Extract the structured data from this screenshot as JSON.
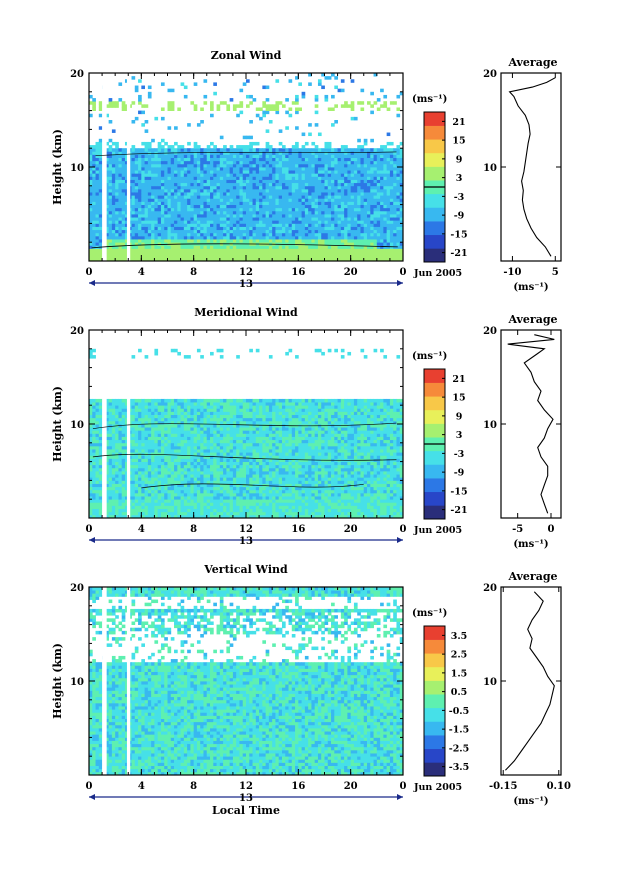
{
  "chart_data": [
    {
      "type": "heatmap",
      "title": "Zonal Wind",
      "ylabel": "Height (km)",
      "ylim": [
        0,
        20
      ],
      "yticks": [
        10,
        20
      ],
      "xlim": [
        0,
        24
      ],
      "xticks": [
        "0",
        "4",
        "8",
        "12",
        "16",
        "20",
        "0"
      ],
      "date_day": "13",
      "date_label": "Jun 2005",
      "colorbar": {
        "unit_label": "(ms⁻¹)",
        "ticks": [
          "21",
          "15",
          "9",
          "3",
          "-3",
          "-9",
          "-15",
          "-21"
        ],
        "range": [
          -24,
          24
        ]
      },
      "profile": {
        "title": "Average",
        "xticks": [
          "-10",
          "5"
        ],
        "xlim": [
          -14,
          7
        ],
        "xlabel": "(ms⁻¹)",
        "series": [
          {
            "height": 0.5,
            "value": 3.5
          },
          {
            "height": 1.5,
            "value": 1.5
          },
          {
            "height": 2.5,
            "value": -1.5
          },
          {
            "height": 3.5,
            "value": -3.5
          },
          {
            "height": 4.5,
            "value": -5.0
          },
          {
            "height": 5.5,
            "value": -6.0
          },
          {
            "height": 6.5,
            "value": -6.5
          },
          {
            "height": 7.5,
            "value": -6.2
          },
          {
            "height": 8.5,
            "value": -6.8
          },
          {
            "height": 9.5,
            "value": -6.0
          },
          {
            "height": 10.5,
            "value": -5.5
          },
          {
            "height": 11.5,
            "value": -5.0
          },
          {
            "height": 12.5,
            "value": -4.5
          },
          {
            "height": 13.5,
            "value": -3.8
          },
          {
            "height": 14.5,
            "value": -4.2
          },
          {
            "height": 15.5,
            "value": -5.5
          },
          {
            "height": 16.5,
            "value": -8.0
          },
          {
            "height": 17.5,
            "value": -9.5
          },
          {
            "height": 18.0,
            "value": -11.0
          },
          {
            "height": 18.5,
            "value": -3.0
          },
          {
            "height": 19.0,
            "value": 2.0
          },
          {
            "height": 19.5,
            "value": 5.0
          }
        ]
      }
    },
    {
      "type": "heatmap",
      "title": "Meridional Wind",
      "ylabel": "Height (km)",
      "ylim": [
        0,
        20
      ],
      "yticks": [
        10,
        20
      ],
      "xlim": [
        0,
        24
      ],
      "xticks": [
        "0",
        "4",
        "8",
        "12",
        "16",
        "20",
        "0"
      ],
      "date_day": "13",
      "date_label": "Jun 2005",
      "colorbar": {
        "unit_label": "(ms⁻¹)",
        "ticks": [
          "21",
          "15",
          "9",
          "3",
          "-3",
          "-9",
          "-15",
          "-21"
        ],
        "range": [
          -24,
          24
        ]
      },
      "profile": {
        "title": "Average",
        "xticks": [
          "-5",
          "0"
        ],
        "xlim": [
          -7.5,
          1.5
        ],
        "xlabel": "(ms⁻¹)",
        "series": [
          {
            "height": 0.5,
            "value": -0.5
          },
          {
            "height": 1.5,
            "value": -1.0
          },
          {
            "height": 2.5,
            "value": -1.5
          },
          {
            "height": 3.5,
            "value": -1.0
          },
          {
            "height": 4.5,
            "value": -0.5
          },
          {
            "height": 5.5,
            "value": -0.5
          },
          {
            "height": 6.5,
            "value": -1.5
          },
          {
            "height": 7.5,
            "value": -2.0
          },
          {
            "height": 8.5,
            "value": -1.0
          },
          {
            "height": 9.5,
            "value": -0.5
          },
          {
            "height": 10.5,
            "value": 0.3
          },
          {
            "height": 11.5,
            "value": -1.0
          },
          {
            "height": 12.5,
            "value": -2.0
          },
          {
            "height": 13.5,
            "value": -1.5
          },
          {
            "height": 14.5,
            "value": -2.5
          },
          {
            "height": 15.5,
            "value": -3.0
          },
          {
            "height": 16.5,
            "value": -4.0
          },
          {
            "height": 17.5,
            "value": -2.0
          },
          {
            "height": 18.0,
            "value": -1.0
          },
          {
            "height": 18.5,
            "value": -6.5
          },
          {
            "height": 19.0,
            "value": 0.5
          },
          {
            "height": 19.5,
            "value": -2.5
          }
        ]
      }
    },
    {
      "type": "heatmap",
      "title": "Vertical Wind",
      "ylabel": "Height (km)",
      "xlabel": "Local Time",
      "ylim": [
        0,
        20
      ],
      "yticks": [
        10,
        20
      ],
      "xlim": [
        0,
        24
      ],
      "xticks": [
        "0",
        "4",
        "8",
        "12",
        "16",
        "20",
        "0"
      ],
      "date_day": "13",
      "date_label": "Jun 2005",
      "colorbar": {
        "unit_label": "(ms⁻¹)",
        "ticks": [
          "3.5",
          "2.5",
          "1.5",
          "0.5",
          "-0.5",
          "-1.5",
          "-2.5",
          "-3.5"
        ],
        "range": [
          -4,
          4
        ]
      },
      "profile": {
        "title": "Average",
        "xticks": [
          "-0.15",
          "0.10"
        ],
        "xlim": [
          -0.16,
          0.11
        ],
        "xlabel": "(ms⁻¹)",
        "series": [
          {
            "height": 0.5,
            "value": -0.14
          },
          {
            "height": 1.5,
            "value": -0.1
          },
          {
            "height": 2.5,
            "value": -0.07
          },
          {
            "height": 3.5,
            "value": -0.04
          },
          {
            "height": 4.5,
            "value": -0.01
          },
          {
            "height": 5.5,
            "value": 0.02
          },
          {
            "height": 6.5,
            "value": 0.04
          },
          {
            "height": 7.5,
            "value": 0.06
          },
          {
            "height": 8.5,
            "value": 0.07
          },
          {
            "height": 9.5,
            "value": 0.08
          },
          {
            "height": 10.5,
            "value": 0.05
          },
          {
            "height": 11.5,
            "value": 0.03
          },
          {
            "height": 12.5,
            "value": 0.0
          },
          {
            "height": 13.5,
            "value": -0.03
          },
          {
            "height": 14.5,
            "value": -0.02
          },
          {
            "height": 15.5,
            "value": -0.04
          },
          {
            "height": 16.5,
            "value": -0.02
          },
          {
            "height": 17.5,
            "value": 0.01
          },
          {
            "height": 18.5,
            "value": 0.03
          },
          {
            "height": 19.5,
            "value": -0.01
          }
        ]
      }
    }
  ],
  "colors": {
    "ramp": [
      "#2a2e7a",
      "#2846c8",
      "#2c78e6",
      "#38b8f0",
      "#46e0e8",
      "#5ef0b0",
      "#a6f070",
      "#e8f05a",
      "#f8c848",
      "#f68a3a",
      "#e84030"
    ],
    "axis": "#000000",
    "arrow": "#1a2a8a"
  }
}
